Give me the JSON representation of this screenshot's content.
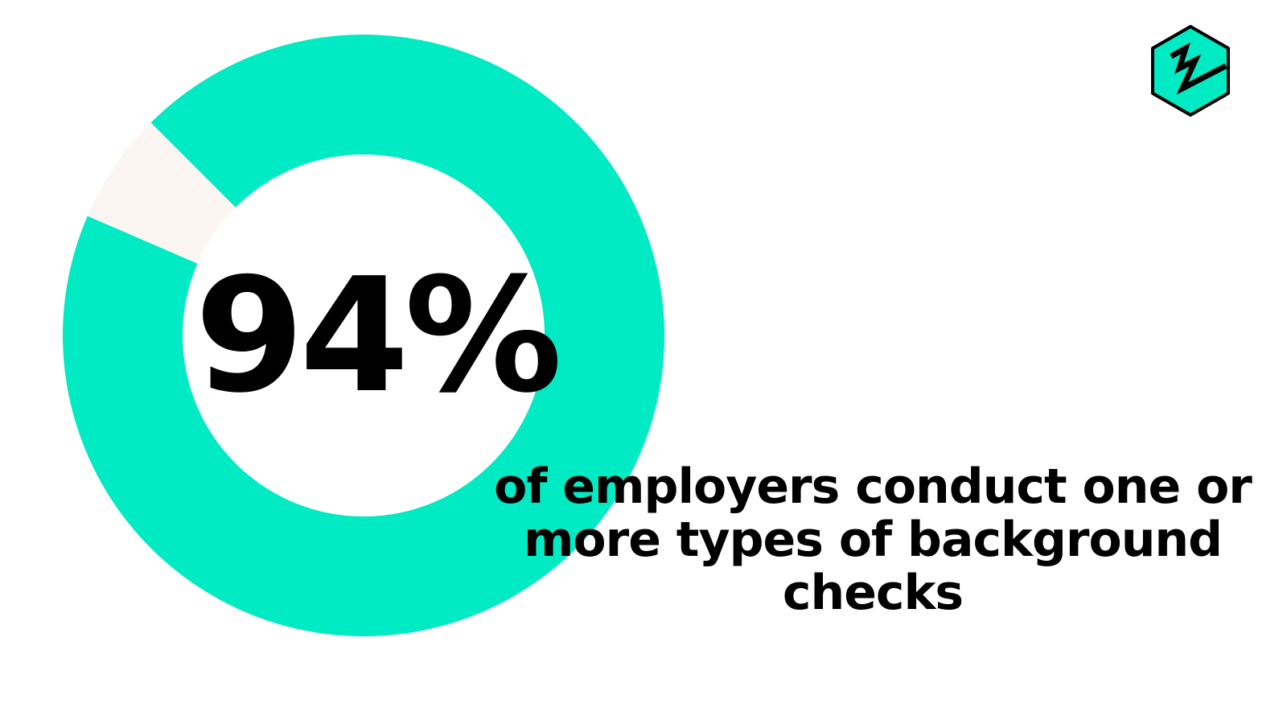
{
  "chart_data": {
    "type": "pie",
    "variant": "donut",
    "slices": [
      {
        "label": "conduct background checks",
        "value": 94,
        "color": "#00EAC4"
      },
      {
        "label": "remainder",
        "value": 6,
        "color": "#FCF6F2"
      }
    ],
    "center_label": "94%",
    "caption": "of employers conduct one or more types of background checks"
  },
  "logo": {
    "icon": "hexagon-zigzag-logo",
    "color": "#00EAC4"
  }
}
